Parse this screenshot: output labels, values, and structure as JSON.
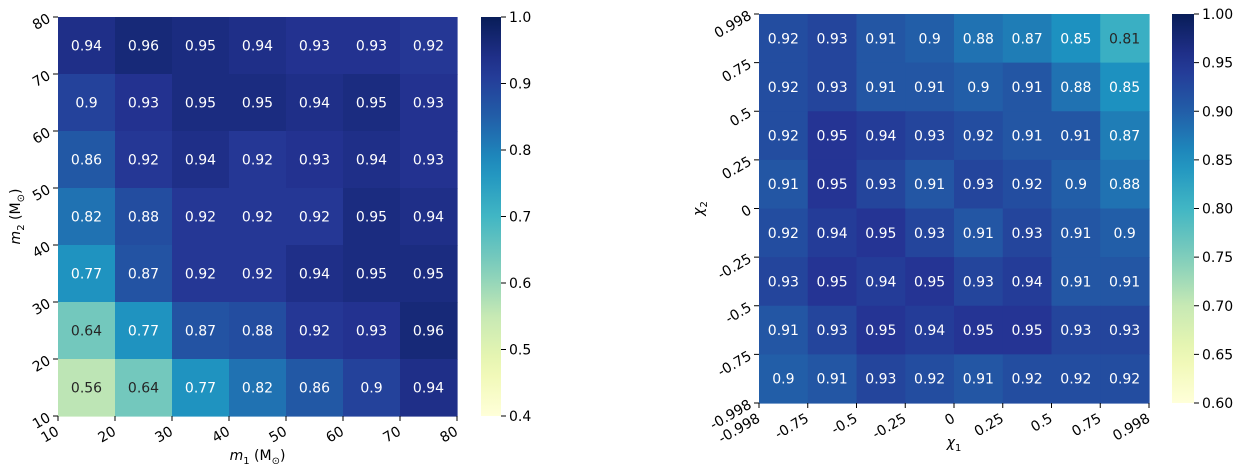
{
  "chart_data": [
    {
      "type": "heatmap",
      "xlabel_main": "m",
      "xlabel_sub": "1",
      "xlabel_unit_open": " (M",
      "xlabel_unit_sub": "⊙",
      "xlabel_unit_close": ")",
      "ylabel_main": "m",
      "ylabel_sub": "2",
      "ylabel_unit_open": " (M",
      "ylabel_unit_sub": "⊙",
      "ylabel_unit_close": ")",
      "x_ticks": [
        "10",
        "20",
        "30",
        "40",
        "50",
        "60",
        "70",
        "80"
      ],
      "y_ticks": [
        "10",
        "20",
        "30",
        "40",
        "50",
        "60",
        "70",
        "80"
      ],
      "rows_top_to_bottom": [
        [
          0.94,
          0.96,
          0.95,
          0.94,
          0.93,
          0.93,
          0.92
        ],
        [
          0.9,
          0.93,
          0.95,
          0.95,
          0.94,
          0.95,
          0.93
        ],
        [
          0.86,
          0.92,
          0.94,
          0.92,
          0.93,
          0.94,
          0.93
        ],
        [
          0.82,
          0.88,
          0.92,
          0.92,
          0.92,
          0.95,
          0.94
        ],
        [
          0.77,
          0.87,
          0.92,
          0.92,
          0.94,
          0.95,
          0.95
        ],
        [
          0.64,
          0.77,
          0.87,
          0.88,
          0.92,
          0.93,
          0.96
        ],
        [
          0.56,
          0.64,
          0.77,
          0.82,
          0.86,
          0.9,
          0.94
        ]
      ],
      "vmin": 0.4,
      "vmax": 1.0,
      "colorbar_ticks": [
        "0.4",
        "0.5",
        "0.6",
        "0.7",
        "0.8",
        "0.9",
        "1.0"
      ],
      "colormap": "YlGnBu"
    },
    {
      "type": "heatmap",
      "xlabel_main": "χ",
      "xlabel_sub": "1",
      "ylabel_main": "χ",
      "ylabel_sub": "2",
      "x_ticks": [
        "-0.998",
        "-0.75",
        "-0.5",
        "-0.25",
        "0",
        "0.25",
        "0.5",
        "0.75",
        "0.998"
      ],
      "y_ticks": [
        "-0.998",
        "-0.75",
        "-0.5",
        "-0.25",
        "0",
        "0.25",
        "0.5",
        "0.75",
        "0.998"
      ],
      "rows_top_to_bottom": [
        [
          0.92,
          0.93,
          0.91,
          0.9,
          0.88,
          0.87,
          0.85,
          0.81
        ],
        [
          0.92,
          0.93,
          0.91,
          0.91,
          0.9,
          0.91,
          0.88,
          0.85
        ],
        [
          0.92,
          0.95,
          0.94,
          0.93,
          0.92,
          0.91,
          0.91,
          0.87
        ],
        [
          0.91,
          0.95,
          0.93,
          0.91,
          0.93,
          0.92,
          0.9,
          0.88
        ],
        [
          0.92,
          0.94,
          0.95,
          0.93,
          0.91,
          0.93,
          0.91,
          0.9
        ],
        [
          0.93,
          0.95,
          0.94,
          0.95,
          0.93,
          0.94,
          0.91,
          0.91
        ],
        [
          0.91,
          0.93,
          0.95,
          0.94,
          0.95,
          0.95,
          0.93,
          0.93
        ],
        [
          0.9,
          0.91,
          0.93,
          0.92,
          0.91,
          0.92,
          0.92,
          0.92
        ]
      ],
      "vmin": 0.6,
      "vmax": 1.0,
      "colorbar_ticks": [
        "0.60",
        "0.65",
        "0.70",
        "0.75",
        "0.80",
        "0.85",
        "0.90",
        "0.95",
        "1.00"
      ],
      "colormap": "YlGnBu"
    }
  ]
}
